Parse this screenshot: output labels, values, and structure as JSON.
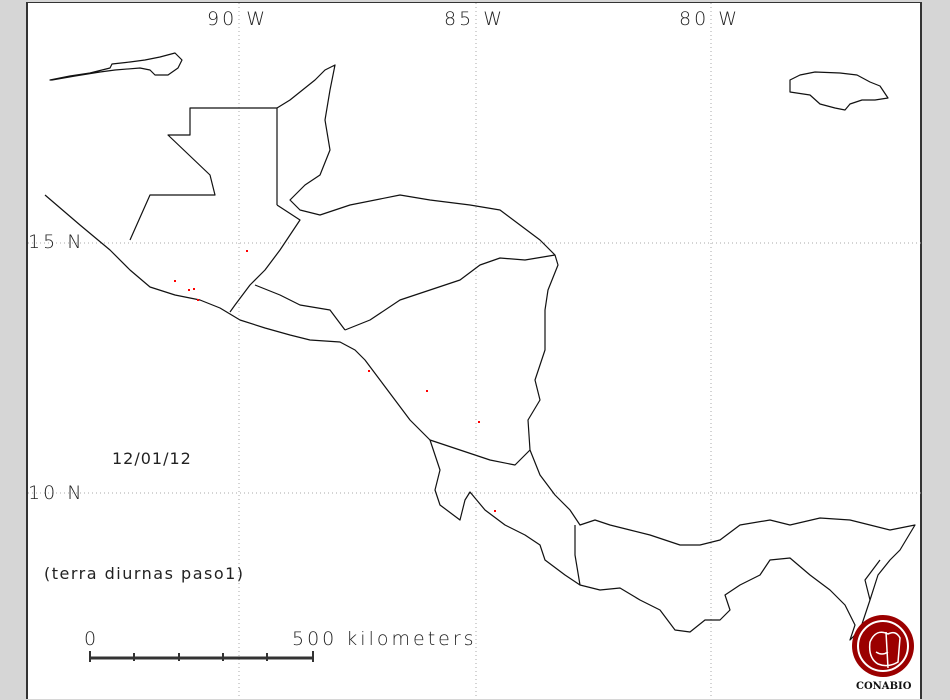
{
  "map": {
    "longitude_labels": [
      "90 W",
      "85 W",
      "80 W"
    ],
    "latitude_labels": [
      "15 N",
      "10 N"
    ],
    "date": "12/01/12",
    "caption": "(terra diurnas paso1)",
    "scale_bar": {
      "start_label": "0",
      "end_label": "500 kilometers",
      "divisions": 5
    },
    "hotspot_color": "#ff0000",
    "hotspot_count": 9,
    "logo_text": "CONABIO",
    "logo_color": "#9b0000"
  }
}
